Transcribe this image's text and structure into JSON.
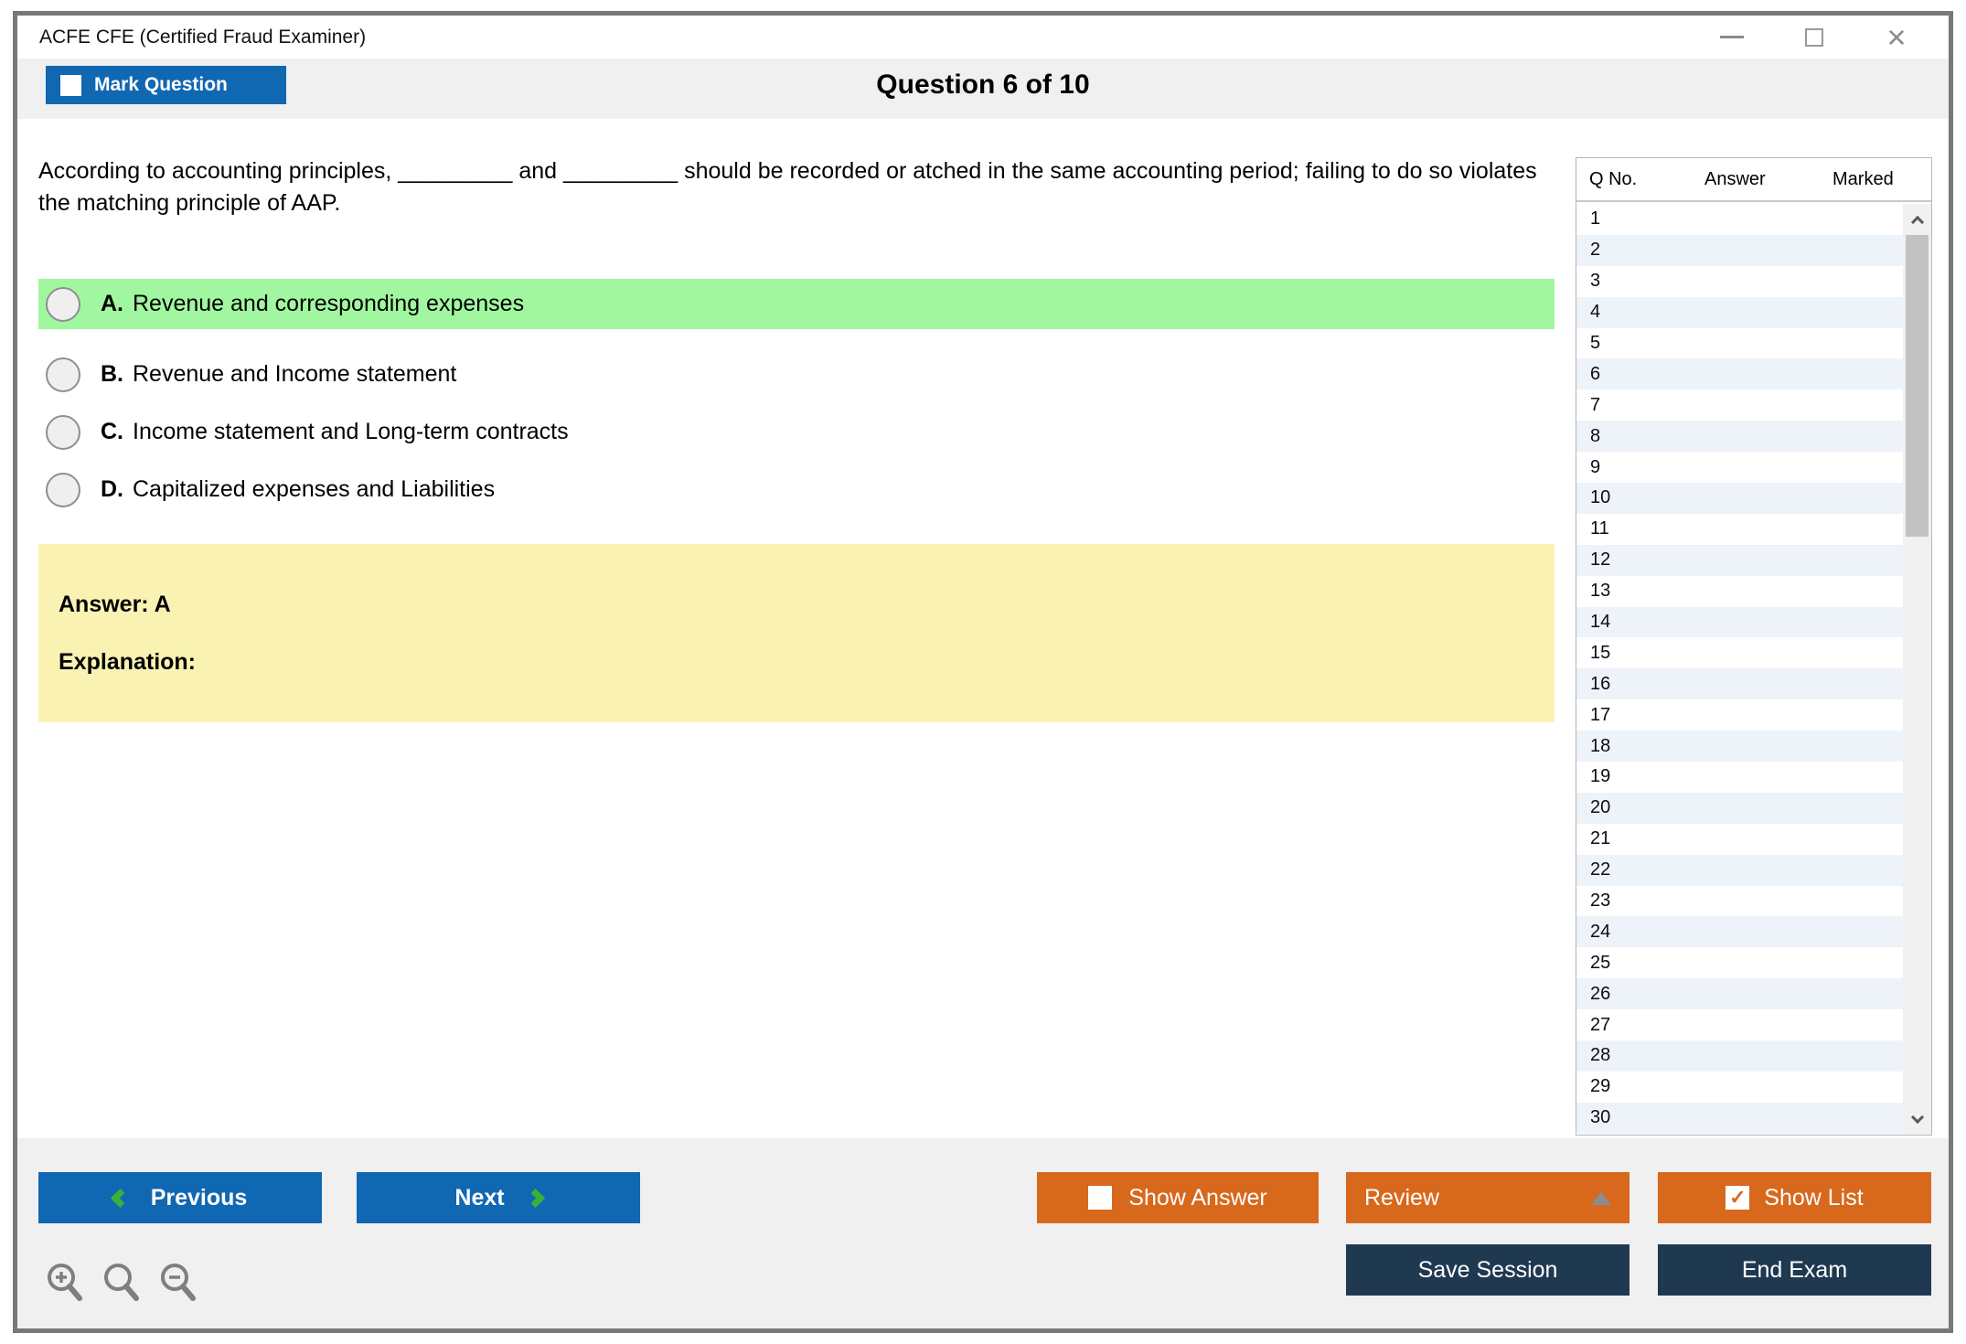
{
  "window": {
    "title": "ACFE CFE (Certified Fraud Examiner)"
  },
  "header": {
    "mark_question_label": "Mark Question",
    "question_counter": "Question 6 of 10"
  },
  "question": {
    "text": "According to accounting principles, _________ and _________ should be recorded or atched in the same accounting period; failing to do so violates the matching principle of AAP.",
    "options": [
      {
        "letter": "A.",
        "text": "Revenue and corresponding expenses",
        "highlighted": true
      },
      {
        "letter": "B.",
        "text": "Revenue and Income statement",
        "highlighted": false
      },
      {
        "letter": "C.",
        "text": "Income statement and Long-term contracts",
        "highlighted": false
      },
      {
        "letter": "D.",
        "text": "Capitalized expenses and Liabilities",
        "highlighted": false
      }
    ],
    "answer_label": "Answer: A",
    "explanation_label": "Explanation:"
  },
  "sidebar": {
    "columns": {
      "qno": "Q No.",
      "answer": "Answer",
      "marked": "Marked"
    },
    "rows": [
      "1",
      "2",
      "3",
      "4",
      "5",
      "6",
      "7",
      "8",
      "9",
      "10",
      "11",
      "12",
      "13",
      "14",
      "15",
      "16",
      "17",
      "18",
      "19",
      "20",
      "21",
      "22",
      "23",
      "24",
      "25",
      "26",
      "27",
      "28",
      "29",
      "30"
    ]
  },
  "footer": {
    "previous_label": "Previous",
    "next_label": "Next",
    "show_answer_label": "Show Answer",
    "review_label": "Review",
    "show_list_label": "Show List",
    "save_session_label": "Save Session",
    "end_exam_label": "End Exam",
    "show_list_checked": "✓"
  },
  "colors": {
    "accent_blue": "#1067b2",
    "accent_orange": "#d8681c",
    "navy": "#1f3951",
    "highlight_green": "#a1f7a0",
    "answer_yellow": "#faf2b3",
    "chevron_green": "#3bae3c"
  }
}
